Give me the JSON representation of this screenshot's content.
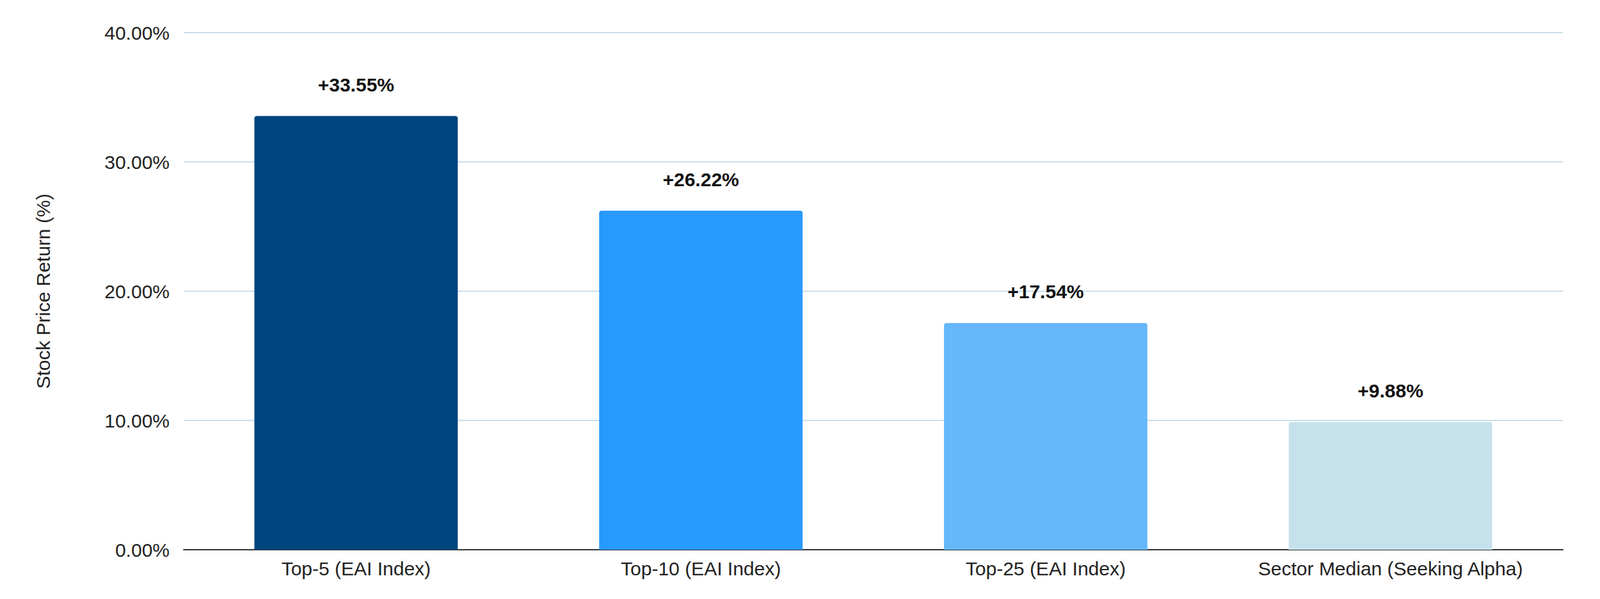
{
  "chart_data": {
    "type": "bar",
    "y_label": "Stock Price Return (%)",
    "categories": [
      "Top-5 (EAI Index)",
      "Top-10 (EAI Index)",
      "Top-25 (EAI Index)",
      "Sector Median (Seeking Alpha)"
    ],
    "values": [
      33.55,
      26.22,
      17.54,
      9.88
    ],
    "value_labels": [
      "+33.55%",
      "+26.22%",
      "+17.54%",
      "+9.88%"
    ],
    "colors": [
      "#00457f",
      "#2899fd",
      "#66b8fb",
      "#c5e2ec"
    ],
    "ylim": [
      0,
      40
    ],
    "yticks": [
      {
        "value": 0,
        "label": "0.00%"
      },
      {
        "value": 10,
        "label": "10.00%"
      },
      {
        "value": 20,
        "label": "20.00%"
      },
      {
        "value": 30,
        "label": "30.00%"
      },
      {
        "value": 40,
        "label": "40.00%"
      }
    ],
    "grid": true,
    "data_labels": true
  }
}
